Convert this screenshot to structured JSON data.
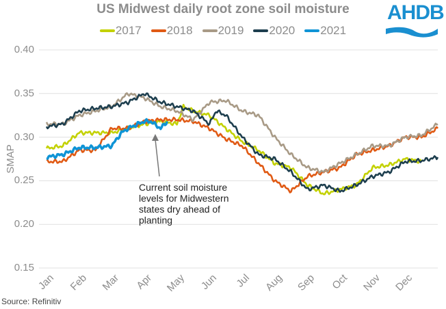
{
  "chart_data": {
    "type": "line",
    "title": "US Midwest daily root zone soil moisture",
    "ylabel": "SMAP",
    "xlabel": "",
    "ylim": [
      0.15,
      0.4
    ],
    "yticks": [
      "0.40",
      "0.35",
      "0.30",
      "0.25",
      "0.20",
      "0.15"
    ],
    "ytick_values": [
      0.4,
      0.35,
      0.3,
      0.25,
      0.2,
      0.15
    ],
    "categories": [
      "Jan",
      "Feb",
      "Mar",
      "Apr",
      "May",
      "Jun",
      "Jul",
      "Aug",
      "Sep",
      "Oct",
      "Nov",
      "Dec"
    ],
    "grid": true,
    "legend_position": "top",
    "x_unit": "month index (0 = start of Jan)",
    "series": [
      {
        "name": "2017",
        "color": "#c3d100",
        "x": [
          0,
          0.5,
          1,
          1.5,
          2,
          2.5,
          3,
          3.5,
          4,
          4.2,
          4.5,
          5,
          5.5,
          6,
          6.5,
          7,
          7.5,
          8,
          8.5,
          9,
          9.5,
          10,
          10.5,
          11,
          11.5
        ],
        "values": [
          0.287,
          0.29,
          0.305,
          0.305,
          0.305,
          0.31,
          0.315,
          0.318,
          0.315,
          0.335,
          0.33,
          0.325,
          0.31,
          0.295,
          0.285,
          0.27,
          0.265,
          0.245,
          0.235,
          0.24,
          0.245,
          0.265,
          0.268,
          0.275,
          0.272
        ]
      },
      {
        "name": "2018",
        "color": "#e05a14",
        "x": [
          0,
          0.5,
          1,
          1.5,
          2,
          2.5,
          3,
          3.5,
          4,
          4.5,
          5,
          5.5,
          6,
          6.5,
          7,
          7.5,
          8,
          8.5,
          9,
          9.5,
          10,
          10.5,
          11,
          11.5,
          12
        ],
        "values": [
          0.272,
          0.272,
          0.285,
          0.285,
          0.31,
          0.31,
          0.318,
          0.32,
          0.32,
          0.318,
          0.31,
          0.298,
          0.29,
          0.27,
          0.25,
          0.238,
          0.255,
          0.26,
          0.265,
          0.28,
          0.285,
          0.29,
          0.3,
          0.3,
          0.31
        ]
      },
      {
        "name": "2019",
        "color": "#a89a86",
        "x": [
          0,
          0.5,
          1,
          1.5,
          2,
          2.5,
          3,
          3.5,
          4,
          4.5,
          5,
          5.5,
          6,
          6.5,
          7,
          7.5,
          8,
          8.5,
          9,
          9.5,
          10,
          10.5,
          11,
          11.5,
          12
        ],
        "values": [
          0.315,
          0.315,
          0.325,
          0.33,
          0.335,
          0.35,
          0.345,
          0.335,
          0.33,
          0.32,
          0.34,
          0.342,
          0.33,
          0.325,
          0.3,
          0.28,
          0.265,
          0.26,
          0.27,
          0.28,
          0.29,
          0.29,
          0.3,
          0.302,
          0.315
        ]
      },
      {
        "name": "2020",
        "color": "#1d3e4e",
        "x": [
          0,
          0.5,
          1,
          1.5,
          2,
          2.5,
          3,
          3.5,
          4,
          4.5,
          5,
          5.2,
          5.5,
          6,
          6.5,
          7,
          7.5,
          8,
          8.5,
          9,
          9.5,
          10,
          10.5,
          11,
          11.5,
          12
        ],
        "values": [
          0.312,
          0.315,
          0.33,
          0.333,
          0.335,
          0.34,
          0.35,
          0.34,
          0.335,
          0.33,
          0.315,
          0.33,
          0.325,
          0.3,
          0.28,
          0.275,
          0.26,
          0.24,
          0.245,
          0.238,
          0.245,
          0.255,
          0.26,
          0.272,
          0.273,
          0.277
        ]
      },
      {
        "name": "2021",
        "color": "#0f94d6",
        "x": [
          0,
          0.5,
          1,
          1.5,
          2,
          2.3,
          2.5,
          2.8,
          3,
          3.2,
          3.5,
          3.7
        ],
        "values": [
          0.277,
          0.28,
          0.288,
          0.288,
          0.29,
          0.305,
          0.31,
          0.315,
          0.318,
          0.318,
          0.31,
          0.318
        ]
      }
    ],
    "annotation": [
      "Current soil moisture",
      "levels for Midwestern",
      "states dry ahead of",
      "planting"
    ]
  },
  "logo": "AHDB",
  "source": "Source: Refinitiv"
}
